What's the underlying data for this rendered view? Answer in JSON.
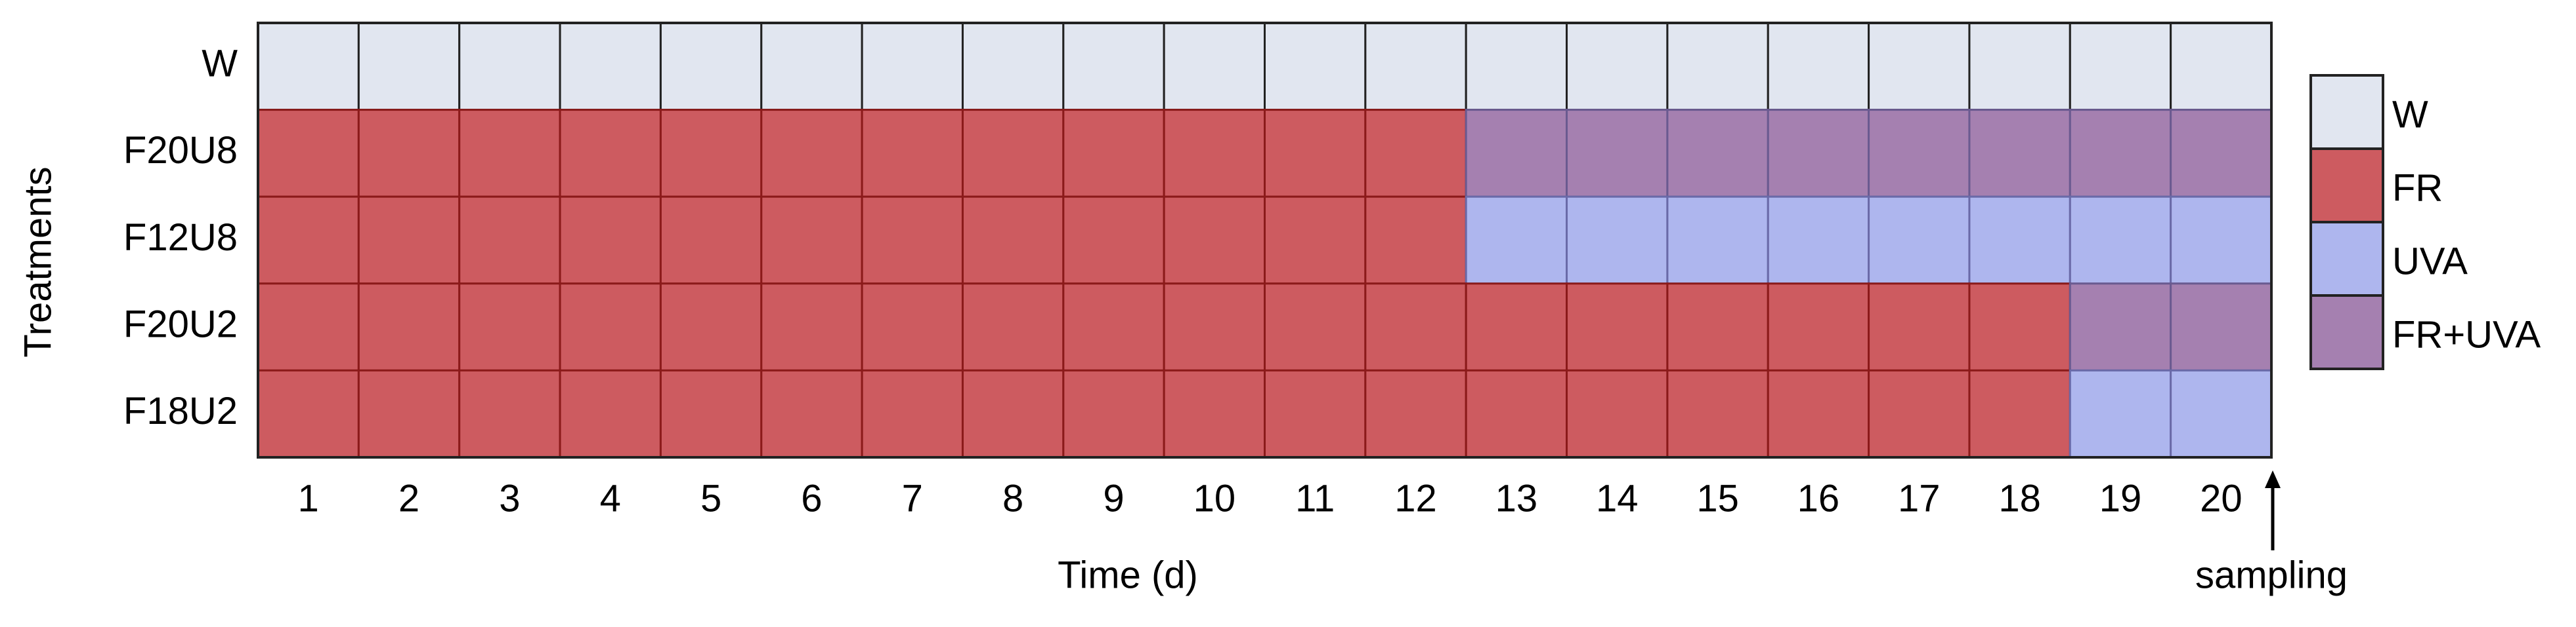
{
  "chart_data": {
    "type": "heatmap",
    "y_label": "Treatments",
    "x_label": "Time (d)",
    "annotation": "sampling",
    "x": [
      1,
      2,
      3,
      4,
      5,
      6,
      7,
      8,
      9,
      10,
      11,
      12,
      13,
      14,
      15,
      16,
      17,
      18,
      19,
      20
    ],
    "rows": [
      "W",
      "F20U8",
      "F12U8",
      "F20U2",
      "F18U2"
    ],
    "legend": [
      {
        "name": "W",
        "color": "#e1e6f0",
        "edge": "#222222"
      },
      {
        "name": "FR",
        "color": "#cd5b60",
        "edge": "#8b1a1a"
      },
      {
        "name": "UVA",
        "color": "#aeb6ee",
        "edge": "#6a6aa8"
      },
      {
        "name": "FR+UVA",
        "color": "#a580b0",
        "edge": "#6a5a90"
      }
    ],
    "cells": [
      [
        "W",
        "W",
        "W",
        "W",
        "W",
        "W",
        "W",
        "W",
        "W",
        "W",
        "W",
        "W",
        "W",
        "W",
        "W",
        "W",
        "W",
        "W",
        "W",
        "W"
      ],
      [
        "FR",
        "FR",
        "FR",
        "FR",
        "FR",
        "FR",
        "FR",
        "FR",
        "FR",
        "FR",
        "FR",
        "FR",
        "FR+UVA",
        "FR+UVA",
        "FR+UVA",
        "FR+UVA",
        "FR+UVA",
        "FR+UVA",
        "FR+UVA",
        "FR+UVA"
      ],
      [
        "FR",
        "FR",
        "FR",
        "FR",
        "FR",
        "FR",
        "FR",
        "FR",
        "FR",
        "FR",
        "FR",
        "FR",
        "UVA",
        "UVA",
        "UVA",
        "UVA",
        "UVA",
        "UVA",
        "UVA",
        "UVA"
      ],
      [
        "FR",
        "FR",
        "FR",
        "FR",
        "FR",
        "FR",
        "FR",
        "FR",
        "FR",
        "FR",
        "FR",
        "FR",
        "FR",
        "FR",
        "FR",
        "FR",
        "FR",
        "FR",
        "FR+UVA",
        "FR+UVA"
      ],
      [
        "FR",
        "FR",
        "FR",
        "FR",
        "FR",
        "FR",
        "FR",
        "FR",
        "FR",
        "FR",
        "FR",
        "FR",
        "FR",
        "FR",
        "FR",
        "FR",
        "FR",
        "FR",
        "UVA",
        "UVA"
      ]
    ]
  }
}
